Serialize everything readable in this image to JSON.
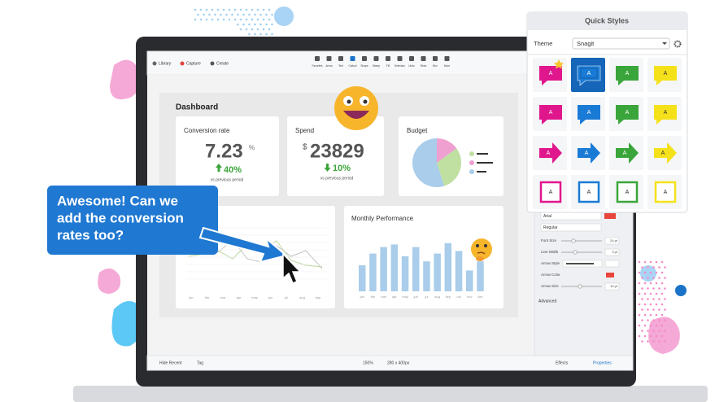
{
  "toolbar": {
    "left": [
      "Library",
      "Capture",
      "Create"
    ],
    "tools": [
      "Favorites",
      "Arrow",
      "Text",
      "Callout",
      "Shape",
      "Stamp",
      "Fill",
      "Selection",
      "Undo",
      "Redo",
      "Blur",
      "More"
    ]
  },
  "dashboard": {
    "title": "Dashboard",
    "conversion": {
      "label": "Conversion rate",
      "value": "7.23",
      "unit": "%",
      "change": "40%",
      "note": "vs previous period"
    },
    "spend": {
      "label": "Spend",
      "currency": "$",
      "value": "23829",
      "change": "10%",
      "note": "vs previous period"
    },
    "budget": {
      "label": "Budget",
      "slices": [
        55,
        30,
        15
      ],
      "colors": [
        "#a9cdea",
        "#bfe0a0",
        "#ef9fd0"
      ]
    },
    "line_chart": {
      "months": [
        "jan",
        "feb",
        "mar",
        "apr",
        "may",
        "jun",
        "jul",
        "aug",
        "sep"
      ]
    },
    "monthly": {
      "label": "Monthly Performance",
      "months": [
        "jan",
        "feb",
        "mar",
        "apr",
        "may",
        "jun",
        "jul",
        "aug",
        "sep",
        "oct",
        "nov",
        "dec"
      ],
      "values": [
        40,
        58,
        68,
        72,
        54,
        68,
        46,
        58,
        74,
        62,
        32,
        46
      ],
      "color": "#a9cdea"
    }
  },
  "callout": {
    "lines": [
      "Awesome! Can we",
      "add the conversion",
      "rates too?"
    ]
  },
  "quick_styles": {
    "title": "Quick Styles",
    "theme_label": "Theme",
    "theme": "Snagit",
    "tile_text": "A"
  },
  "properties": {
    "font": "Arial",
    "weight": "Regular",
    "rows": [
      {
        "label": "Font Size",
        "value": "24 pt"
      },
      {
        "label": "Line Width",
        "value": "9 pt"
      },
      {
        "label": "Arrow Style"
      },
      {
        "label": "Arrow Color"
      },
      {
        "label": "Arrow Size",
        "value": "10 pt"
      }
    ],
    "advanced": "Advanced"
  },
  "status_bar": {
    "hide_recent": "Hide Recent",
    "tag": "Tag",
    "zoom": "150%",
    "size": "280 x 400px",
    "effects": "Effects",
    "properties": "Properties"
  }
}
